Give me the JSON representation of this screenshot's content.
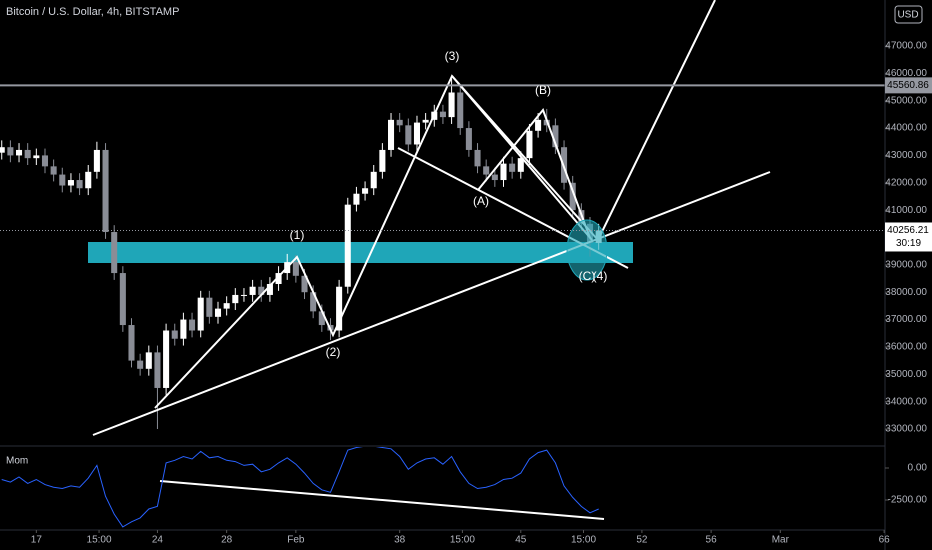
{
  "chart_data": {
    "type": "candlestick",
    "title": "Bitcoin / U.S. Dollar, 4h, BITSTAMP",
    "currency": "USD",
    "x": [
      15,
      15.5,
      16,
      16.5,
      17,
      17.5,
      18,
      18.5,
      19,
      19.5,
      20,
      20.5,
      21,
      21.5,
      22,
      22.5,
      23,
      23.5,
      24,
      24.5,
      25,
      25.5,
      26,
      26.5,
      27,
      27.5,
      28,
      28.5,
      29,
      29.5,
      30,
      30.5,
      31,
      31.5,
      32,
      32.5,
      33,
      33.5,
      34,
      34.5,
      35,
      35.5,
      36,
      36.5,
      37,
      37.5,
      38,
      38.5,
      39,
      39.5,
      40,
      40.5,
      41,
      41.5,
      42,
      42.5,
      43,
      43.5,
      44,
      44.5,
      45,
      45.5,
      46,
      46.5,
      47,
      47.5,
      48,
      48.5,
      49,
      49.5
    ],
    "open": [
      43100,
      43300,
      43000,
      43200,
      42900,
      43000,
      42600,
      42300,
      41900,
      42100,
      41800,
      42400,
      43200,
      40200,
      38700,
      36800,
      35500,
      35200,
      35800,
      34500,
      36600,
      36300,
      37000,
      36600,
      37800,
      37100,
      37400,
      37600,
      37900,
      37900,
      38200,
      37900,
      38300,
      38700,
      39100,
      38600,
      38000,
      37300,
      36800,
      36600,
      38200,
      41200,
      41600,
      41800,
      42400,
      43200,
      44300,
      44100,
      43400,
      44200,
      44300,
      44600,
      44400,
      45300,
      44000,
      43200,
      42600,
      42300,
      42100,
      42700,
      42400,
      42900,
      43900,
      44300,
      44100,
      43300,
      42000,
      41000,
      40500,
      39800
    ],
    "high": [
      43550,
      43550,
      43450,
      43450,
      43250,
      43250,
      42850,
      42550,
      42350,
      42350,
      42650,
      43500,
      43450,
      40450,
      38950,
      37050,
      35750,
      36050,
      36050,
      36850,
      36850,
      37250,
      37250,
      38050,
      38050,
      37650,
      37850,
      38150,
      38150,
      38450,
      38450,
      38550,
      38950,
      39400,
      39350,
      38850,
      38250,
      37550,
      37050,
      38450,
      41450,
      41850,
      42050,
      42650,
      43450,
      44550,
      44550,
      44350,
      44450,
      44550,
      44850,
      44850,
      45800,
      45550,
      44250,
      43450,
      42850,
      42550,
      42950,
      42950,
      43150,
      44150,
      44550,
      44700,
      44350,
      43550,
      42250,
      41250,
      40750,
      40500
    ],
    "low": [
      42850,
      42750,
      42750,
      42650,
      42650,
      42350,
      42050,
      41650,
      41650,
      41550,
      41550,
      42150,
      39950,
      38450,
      36550,
      35250,
      34950,
      34950,
      33000,
      34250,
      36050,
      36050,
      36350,
      36350,
      36850,
      36850,
      37150,
      37350,
      37650,
      37650,
      37650,
      37650,
      38050,
      38450,
      38350,
      37750,
      37050,
      36550,
      36250,
      36350,
      37950,
      40950,
      41350,
      41550,
      42150,
      42950,
      43850,
      43150,
      43150,
      43950,
      44050,
      44150,
      44150,
      43750,
      42950,
      42350,
      42050,
      41850,
      41850,
      42150,
      42150,
      42650,
      43650,
      43850,
      43050,
      41750,
      40750,
      40250,
      39300,
      39550
    ],
    "close": [
      43300,
      43000,
      43200,
      42900,
      43000,
      42600,
      42300,
      41900,
      42100,
      41800,
      42400,
      43200,
      40200,
      38700,
      36800,
      35500,
      35200,
      35800,
      34500,
      36600,
      36300,
      37000,
      36600,
      37800,
      37100,
      37400,
      37600,
      37900,
      37900,
      38200,
      37900,
      38300,
      38700,
      39100,
      38600,
      38000,
      37300,
      36800,
      36600,
      38200,
      41200,
      41600,
      41800,
      42400,
      43200,
      44300,
      44100,
      43400,
      44200,
      44300,
      44600,
      44400,
      45300,
      44000,
      43200,
      42600,
      42300,
      42100,
      42700,
      42400,
      42900,
      43900,
      44300,
      44100,
      43300,
      42000,
      41000,
      40500,
      39800,
      40256.21
    ],
    "up_color": "#ffffff",
    "down_color": "#8a8d96",
    "xlim": [
      14.9,
      66.05
    ],
    "xticks": [
      17,
      {
        "value": 20.625,
        "label": "15:00"
      },
      24,
      28,
      {
        "value": 32,
        "label": "Feb"
      },
      38,
      {
        "value": 41.625,
        "label": "15:00"
      },
      45,
      {
        "value": 48.625,
        "label": "15:00"
      },
      52,
      56,
      {
        "value": 60,
        "label": "Mar"
      },
      66
    ],
    "ylim": [
      32415,
      48681
    ],
    "yticks": [
      {
        "value": 33000,
        "label": "33000.00"
      },
      {
        "value": 34000,
        "label": "34000.00"
      },
      {
        "value": 35000,
        "label": "35000.00"
      },
      {
        "value": 36000,
        "label": "36000.00"
      },
      {
        "value": 37000,
        "label": "37000.00"
      },
      {
        "value": 38000,
        "label": "38000.00"
      },
      {
        "value": 39000,
        "label": "39000.00"
      },
      {
        "value": 40000,
        "label": "40000.00"
      },
      {
        "value": 41000,
        "label": "41000.00"
      },
      {
        "value": 42000,
        "label": "42000.00"
      },
      {
        "value": 43000,
        "label": "43000.00"
      },
      {
        "value": 44000,
        "label": "44000.00"
      },
      {
        "value": 45000,
        "label": "45000.00"
      },
      {
        "value": 46000,
        "label": "46000.00"
      },
      {
        "value": 47000,
        "label": "47000.00"
      }
    ],
    "hline": 45560.86,
    "last_price": 40256.21,
    "countdown": "30:19",
    "annotations": [
      "(1)",
      "(2)",
      "(3)",
      "(A)",
      "(B)",
      "(C)",
      "(4)"
    ],
    "momentum": {
      "name": "Mom",
      "color": "#2962ff",
      "values": [
        -900,
        -1100,
        -700,
        -1200,
        -900,
        -1300,
        -1500,
        -1600,
        -1400,
        -1500,
        -800,
        200,
        -2200,
        -3600,
        -4600,
        -4200,
        -3900,
        -3200,
        -3000,
        400,
        600,
        900,
        700,
        1300,
        800,
        900,
        600,
        500,
        200,
        300,
        -300,
        -100,
        400,
        800,
        300,
        -400,
        -1200,
        -1700,
        -1900,
        -300,
        1400,
        1600,
        1700,
        1700,
        1600,
        1500,
        900,
        -100,
        400,
        700,
        800,
        300,
        900,
        -300,
        -1200,
        -1600,
        -1500,
        -1300,
        -900,
        -800,
        -400,
        700,
        1200,
        1400,
        400,
        -1400,
        -2300,
        -3000,
        -3500,
        -3200
      ],
      "ylim": [
        -4844,
        1640
      ],
      "yticks": [
        {
          "value": 0,
          "label": "0.00"
        },
        {
          "value": -2500,
          "label": "-2500.00"
        }
      ]
    }
  }
}
